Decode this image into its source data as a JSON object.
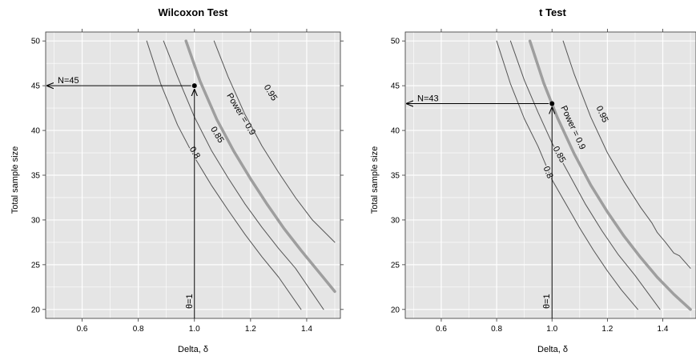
{
  "chart_data": [
    {
      "type": "line",
      "title": "Wilcoxon Test",
      "xlabel": "Delta, δ",
      "ylabel": "Total sample size",
      "xlim": [
        0.47,
        1.52
      ],
      "ylim": [
        19,
        51
      ],
      "xticks": [
        0.6,
        0.8,
        1.0,
        1.2,
        1.4
      ],
      "xtick_labels": [
        "0.6",
        "0.8",
        "1.0",
        "1.2",
        "1.4"
      ],
      "yticks": [
        20,
        25,
        30,
        35,
        40,
        45,
        50
      ],
      "ytick_labels": [
        "20",
        "25",
        "30",
        "35",
        "40",
        "45",
        "50"
      ],
      "grid": true,
      "background": "#e5e5e5",
      "series": [
        {
          "name": "0.8",
          "label": "0.8",
          "color": "#555555",
          "highlight": false,
          "label_at": [
            1.0,
            37.5
          ],
          "x": [
            0.83,
            0.88,
            0.94,
            1.0,
            1.06,
            1.12,
            1.18,
            1.24,
            1.3,
            1.38
          ],
          "y": [
            50.0,
            45.2,
            40.6,
            37.0,
            33.9,
            31.1,
            28.4,
            25.9,
            23.6,
            20.0
          ]
        },
        {
          "name": "0.85",
          "label": "0.85",
          "color": "#555555",
          "highlight": false,
          "label_at": [
            1.08,
            39.5
          ],
          "x": [
            0.89,
            0.94,
            1.0,
            1.06,
            1.12,
            1.18,
            1.24,
            1.3,
            1.36,
            1.46
          ],
          "y": [
            50.0,
            46.0,
            41.5,
            37.8,
            34.7,
            31.8,
            29.2,
            26.8,
            24.6,
            20.0
          ]
        },
        {
          "name": "0.9",
          "label": "Power = 0.9",
          "color": "#9e9e9e",
          "highlight": true,
          "label_at": [
            1.165,
            41.8
          ],
          "x": [
            0.97,
            1.02,
            1.08,
            1.14,
            1.2,
            1.26,
            1.32,
            1.38,
            1.44,
            1.5
          ],
          "y": [
            50.0,
            45.5,
            41.2,
            37.7,
            34.6,
            31.7,
            29.0,
            26.6,
            24.3,
            22.0
          ]
        },
        {
          "name": "0.95",
          "label": "0.95",
          "color": "#555555",
          "highlight": false,
          "label_at": [
            1.27,
            44.2
          ],
          "x": [
            1.07,
            1.12,
            1.18,
            1.24,
            1.3,
            1.36,
            1.42,
            1.5
          ],
          "y": [
            50.0,
            46.0,
            41.8,
            38.3,
            35.3,
            32.5,
            30.0,
            27.5
          ]
        }
      ],
      "annotations": {
        "point": {
          "x": 1.0,
          "y": 45
        },
        "vertical_label": "θ=1",
        "horizontal_label": "N=45",
        "arrow_left_x": 0.47,
        "arrow_bottom_y": 19
      }
    },
    {
      "type": "line",
      "title": "t Test",
      "xlabel": "Delta, δ",
      "ylabel": "Total sample size",
      "xlim": [
        0.47,
        1.52
      ],
      "ylim": [
        19,
        51
      ],
      "xticks": [
        0.6,
        0.8,
        1.0,
        1.2,
        1.4
      ],
      "xtick_labels": [
        "0.6",
        "0.8",
        "1.0",
        "1.2",
        "1.4"
      ],
      "yticks": [
        20,
        25,
        30,
        35,
        40,
        45,
        50
      ],
      "ytick_labels": [
        "20",
        "25",
        "30",
        "35",
        "40",
        "45",
        "50"
      ],
      "grid": true,
      "background": "#e5e5e5",
      "series": [
        {
          "name": "0.8",
          "label": "0.8",
          "color": "#555555",
          "highlight": false,
          "label_at": [
            0.985,
            35.3
          ],
          "x": [
            0.8,
            0.85,
            0.9,
            0.95,
            1.0,
            1.05,
            1.1,
            1.15,
            1.2,
            1.25,
            1.31
          ],
          "y": [
            50.0,
            45.2,
            41.3,
            38.2,
            34.5,
            31.8,
            29.1,
            26.6,
            24.3,
            22.2,
            20.0
          ]
        },
        {
          "name": "0.85",
          "label": "0.85",
          "color": "#555555",
          "highlight": false,
          "label_at": [
            1.025,
            37.3
          ],
          "x": [
            0.85,
            0.9,
            0.95,
            1.0,
            1.06,
            1.12,
            1.18,
            1.24,
            1.3,
            1.39
          ],
          "y": [
            50.0,
            45.6,
            42.0,
            38.6,
            35.2,
            31.8,
            28.8,
            26.1,
            23.8,
            20.0
          ]
        },
        {
          "name": "0.9",
          "label": "Power = 0.9",
          "color": "#9e9e9e",
          "highlight": true,
          "label_at": [
            1.075,
            40.3
          ],
          "x": [
            0.92,
            0.97,
            1.02,
            1.08,
            1.14,
            1.2,
            1.26,
            1.32,
            1.38,
            1.44,
            1.5
          ],
          "y": [
            50.0,
            45.3,
            41.4,
            37.4,
            33.9,
            30.9,
            28.2,
            25.8,
            23.6,
            21.7,
            20.0
          ]
        },
        {
          "name": "0.95",
          "label": "0.95",
          "color": "#555555",
          "highlight": false,
          "label_at": [
            1.18,
            41.8
          ],
          "x": [
            1.04,
            1.08,
            1.14,
            1.2,
            1.26,
            1.32,
            1.36,
            1.38,
            1.41,
            1.44,
            1.46,
            1.5
          ],
          "y": [
            50.0,
            46.3,
            41.5,
            37.5,
            34.3,
            31.4,
            29.7,
            28.6,
            27.5,
            26.3,
            26.0,
            24.6
          ]
        }
      ],
      "annotations": {
        "point": {
          "x": 1.0,
          "y": 43
        },
        "vertical_label": "θ=1",
        "horizontal_label": "N=43",
        "arrow_left_x": 0.47,
        "arrow_bottom_y": 19
      }
    }
  ]
}
